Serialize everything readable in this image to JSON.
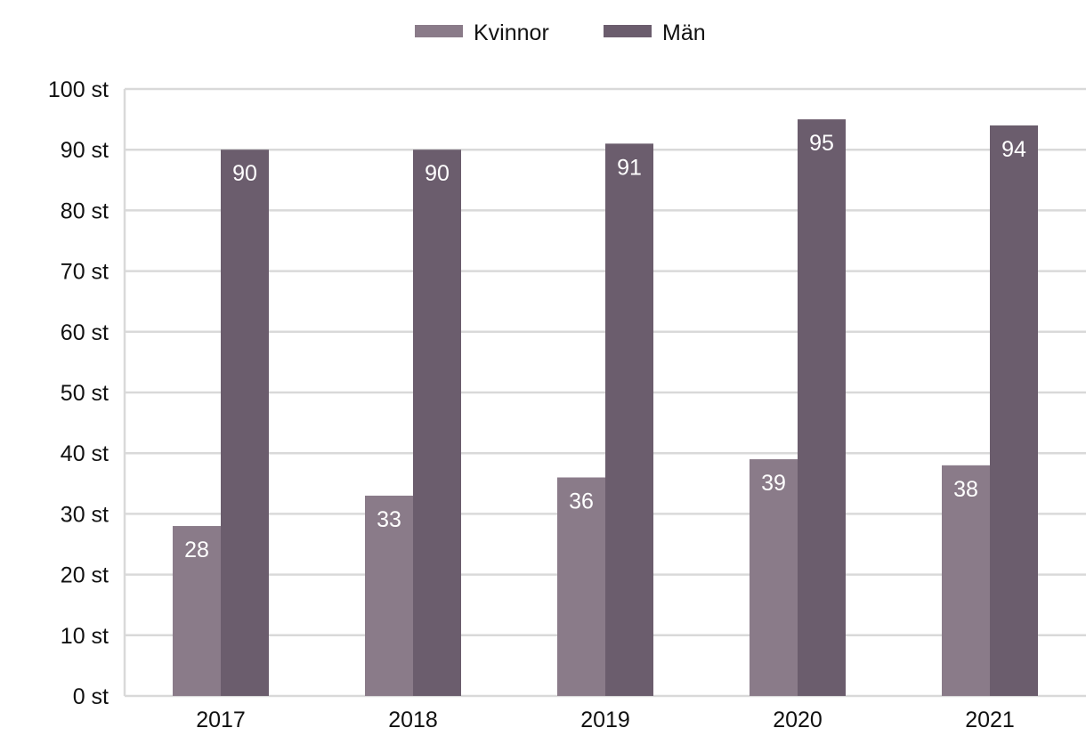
{
  "chart_data": {
    "type": "bar",
    "categories": [
      "2017",
      "2018",
      "2019",
      "2020",
      "2021"
    ],
    "series": [
      {
        "name": "Kvinnor",
        "values": [
          28,
          33,
          36,
          39,
          38
        ],
        "color": "#8a7b89"
      },
      {
        "name": "Män",
        "values": [
          90,
          90,
          91,
          95,
          94
        ],
        "color": "#6b5d6d"
      }
    ],
    "ylim": [
      0,
      100
    ],
    "yticks": [
      "0 st",
      "10 st",
      "20 st",
      "30 st",
      "40 st",
      "50 st",
      "60 st",
      "70 st",
      "80 st",
      "90 st",
      "100 st"
    ],
    "grid": true,
    "legend_position": "top-center",
    "gridline_color": "#d9d9d9"
  }
}
